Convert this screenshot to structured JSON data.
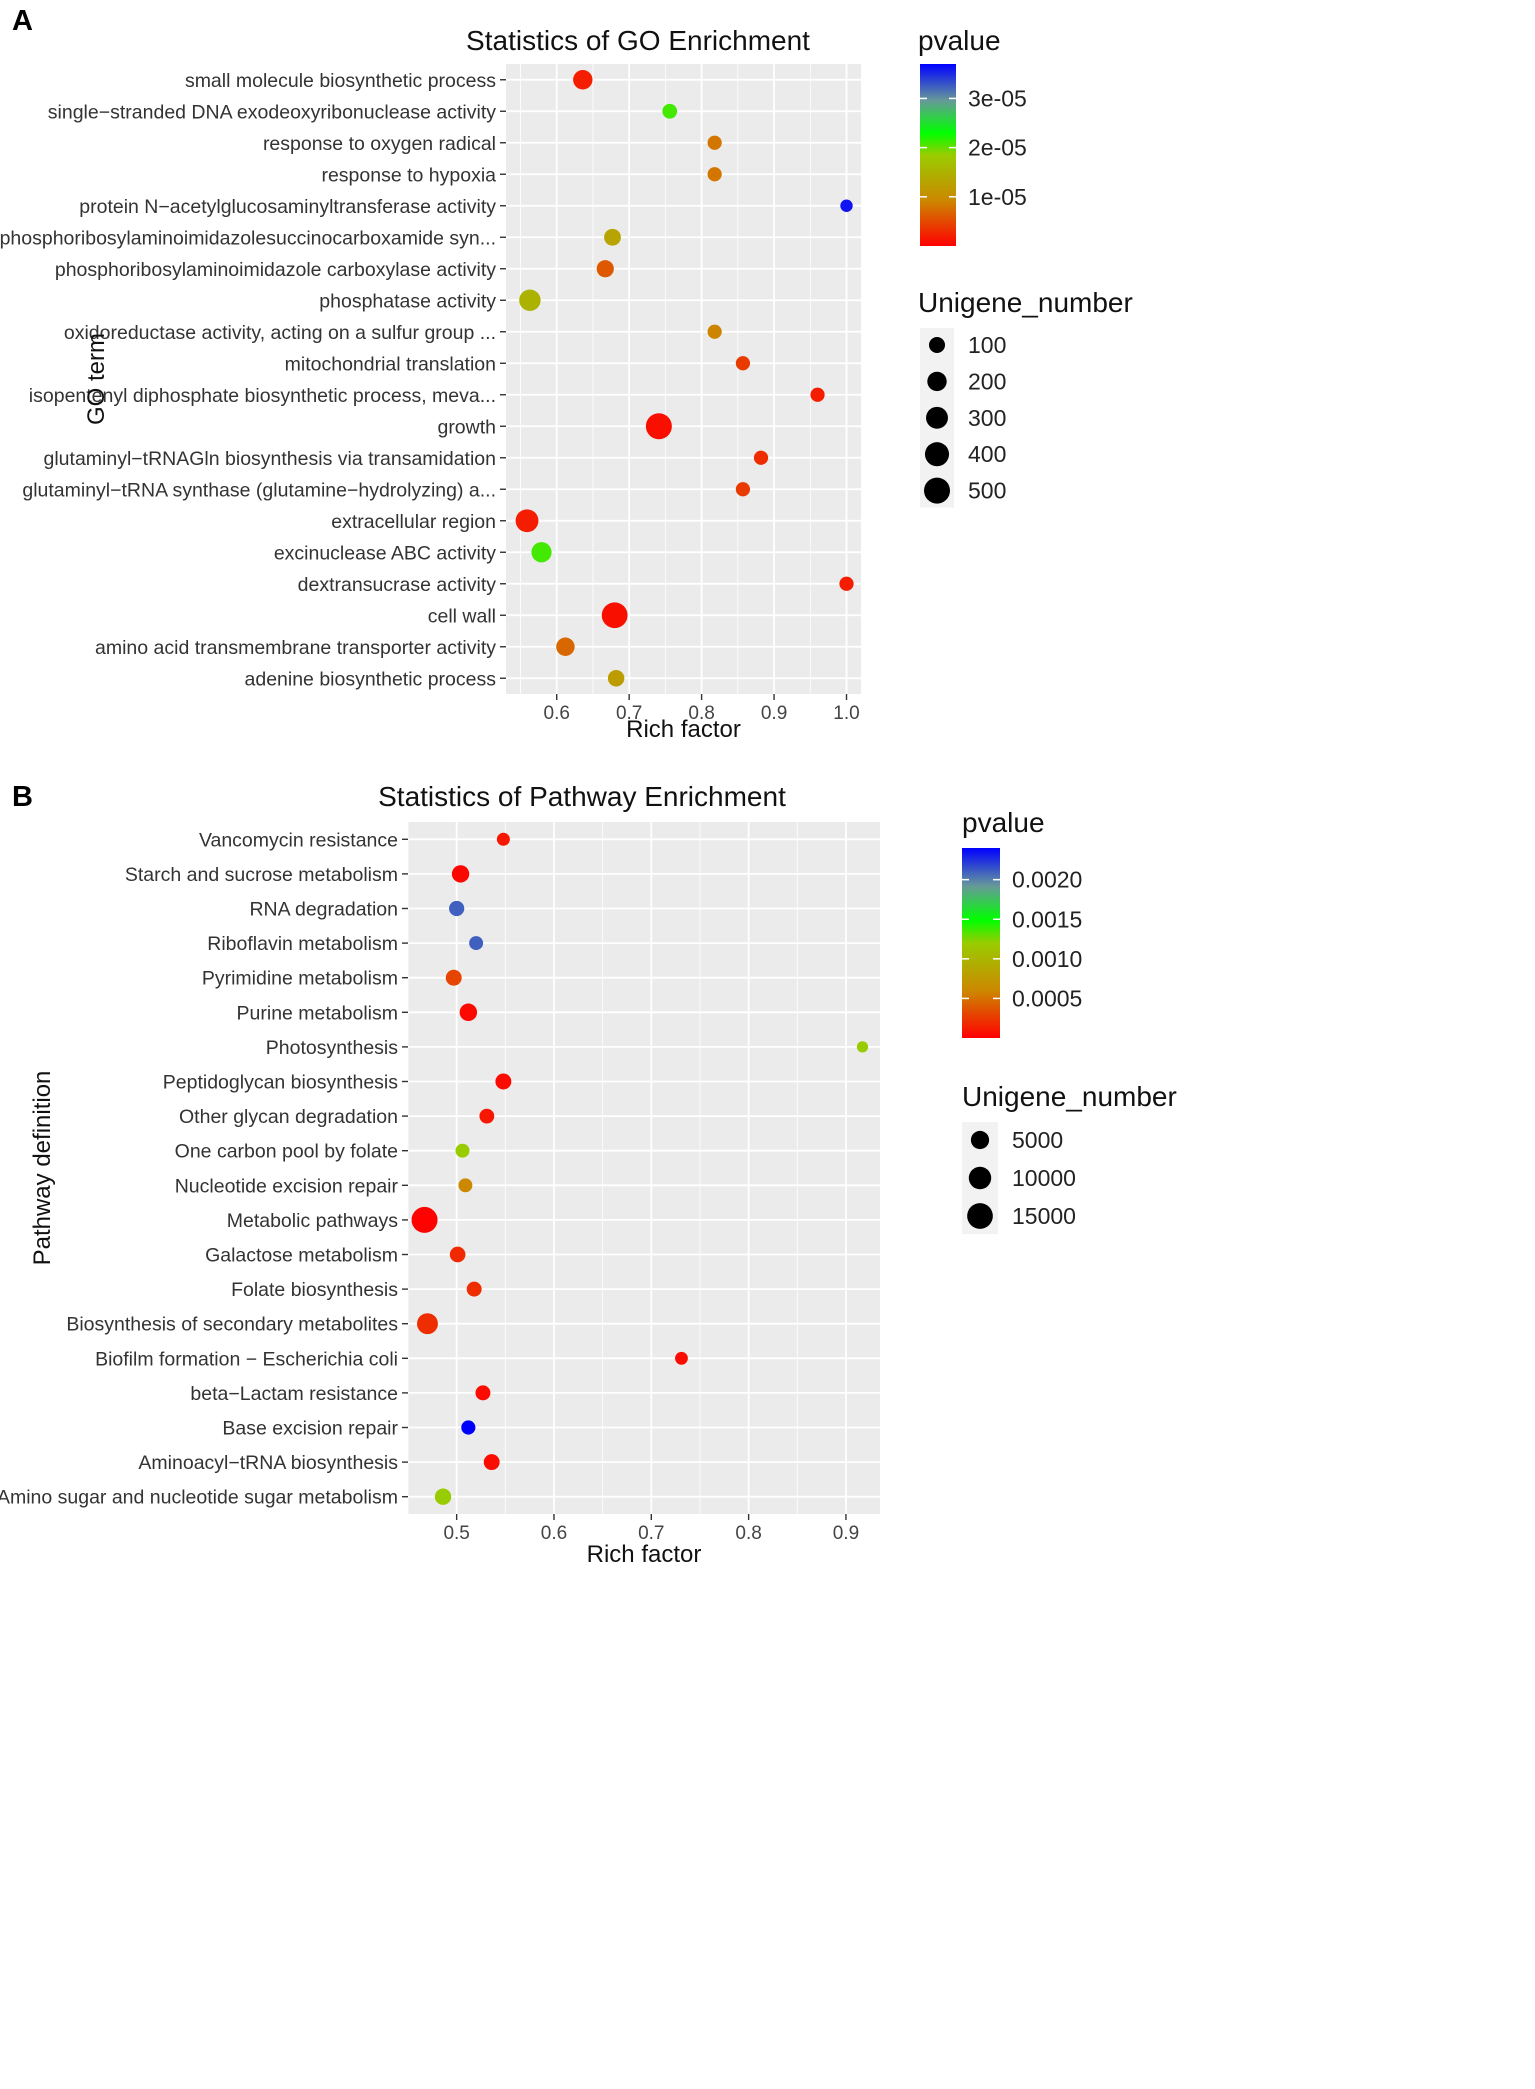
{
  "chart_data": [
    {
      "panel_label": "A",
      "type": "scatter",
      "title": "Statistics of GO Enrichment",
      "xlabel": "Rich factor",
      "ylabel": "GO term",
      "xlim": [
        0.53,
        1.02
      ],
      "xticks": [
        0.6,
        0.7,
        0.8,
        0.9,
        1.0
      ],
      "xtick_labels": [
        "0.6",
        "0.7",
        "0.8",
        "0.9",
        "1.0"
      ],
      "grid": true,
      "color_legend": {
        "title": "pvalue",
        "min": 0,
        "max": 3.7e-05,
        "ticks": [
          1e-05,
          2e-05,
          3e-05
        ],
        "tick_labels": [
          "1e-05",
          "2e-05",
          "3e-05"
        ]
      },
      "size_legend": {
        "title": "Unigene_number",
        "values": [
          100,
          200,
          300,
          400,
          500
        ],
        "labels": [
          "100",
          "200",
          "300",
          "400",
          "500"
        ]
      },
      "points": [
        {
          "term": "small molecule biosynthetic process",
          "rich_factor": 0.636,
          "pvalue": 2e-06,
          "unigene_number": 200
        },
        {
          "term": "single−stranded DNA exodeoxyribonuclease activity",
          "rich_factor": 0.756,
          "pvalue": 2.1e-05,
          "unigene_number": 70
        },
        {
          "term": "response to oxygen radical",
          "rich_factor": 0.818,
          "pvalue": 8e-06,
          "unigene_number": 60
        },
        {
          "term": "response to hypoxia",
          "rich_factor": 0.818,
          "pvalue": 8e-06,
          "unigene_number": 60
        },
        {
          "term": "protein N−acetylglucosaminyltransferase activity",
          "rich_factor": 1.0,
          "pvalue": 3.6e-05,
          "unigene_number": 30
        },
        {
          "term": "phosphoribosylaminoimidazolesuccinocarboxamide syn...",
          "rich_factor": 0.677,
          "pvalue": 1.3e-05,
          "unigene_number": 120
        },
        {
          "term": "phosphoribosylaminoimidazole carboxylase activity",
          "rich_factor": 0.667,
          "pvalue": 6e-06,
          "unigene_number": 130
        },
        {
          "term": "phosphatase activity",
          "rich_factor": 0.563,
          "pvalue": 1.5e-05,
          "unigene_number": 280
        },
        {
          "term": "oxidoreductase activity, acting on a sulfur group ...",
          "rich_factor": 0.818,
          "pvalue": 9e-06,
          "unigene_number": 60
        },
        {
          "term": "mitochondrial translation",
          "rich_factor": 0.857,
          "pvalue": 4e-06,
          "unigene_number": 60
        },
        {
          "term": "isopentenyl diphosphate biosynthetic process, meva...",
          "rich_factor": 0.96,
          "pvalue": 2e-06,
          "unigene_number": 60
        },
        {
          "term": "growth",
          "rich_factor": 0.741,
          "pvalue": 1e-06,
          "unigene_number": 500
        },
        {
          "term": "glutaminyl−tRNAGln biosynthesis via transamidation",
          "rich_factor": 0.882,
          "pvalue": 3e-06,
          "unigene_number": 60
        },
        {
          "term": "glutaminyl−tRNA synthase (glutamine−hydrolyzing) a...",
          "rich_factor": 0.857,
          "pvalue": 4e-06,
          "unigene_number": 60
        },
        {
          "term": "extracellular region",
          "rich_factor": 0.559,
          "pvalue": 2e-06,
          "unigene_number": 340
        },
        {
          "term": "excinuclease ABC activity",
          "rich_factor": 0.579,
          "pvalue": 2.1e-05,
          "unigene_number": 230
        },
        {
          "term": "dextransucrase activity",
          "rich_factor": 1.0,
          "pvalue": 2e-06,
          "unigene_number": 60
        },
        {
          "term": "cell wall",
          "rich_factor": 0.68,
          "pvalue": 1e-06,
          "unigene_number": 490
        },
        {
          "term": "amino acid transmembrane transporter activity",
          "rich_factor": 0.612,
          "pvalue": 7e-06,
          "unigene_number": 170
        },
        {
          "term": "adenine biosynthetic process",
          "rich_factor": 0.682,
          "pvalue": 1.2e-05,
          "unigene_number": 110
        }
      ]
    },
    {
      "panel_label": "B",
      "type": "scatter",
      "title": "Statistics of Pathway Enrichment",
      "xlabel": "Rich factor",
      "ylabel": "Pathway definition",
      "xlim": [
        0.45,
        0.935
      ],
      "xticks": [
        0.5,
        0.6,
        0.7,
        0.8,
        0.9
      ],
      "xtick_labels": [
        "0.5",
        "0.6",
        "0.7",
        "0.8",
        "0.9"
      ],
      "grid": true,
      "color_legend": {
        "title": "pvalue",
        "min": 0,
        "max": 0.0024,
        "ticks": [
          0.0005,
          0.001,
          0.0015,
          0.002
        ],
        "tick_labels": [
          "0.0005",
          "0.0010",
          "0.0015",
          "0.0020"
        ]
      },
      "size_legend": {
        "title": "Unigene_number",
        "values": [
          5000,
          10000,
          15000
        ],
        "labels": [
          "5000",
          "10000",
          "15000"
        ]
      },
      "points": [
        {
          "term": "Vancomycin resistance",
          "rich_factor": 0.548,
          "pvalue": 0.0001,
          "unigene_number": 1200
        },
        {
          "term": "Starch and sucrose metabolism",
          "rich_factor": 0.504,
          "pvalue": 3e-05,
          "unigene_number": 4200
        },
        {
          "term": "RNA degradation",
          "rich_factor": 0.5,
          "pvalue": 0.0021,
          "unigene_number": 2500
        },
        {
          "term": "Riboflavin metabolism",
          "rich_factor": 0.52,
          "pvalue": 0.0021,
          "unigene_number": 1700
        },
        {
          "term": "Pyrimidine metabolism",
          "rich_factor": 0.497,
          "pvalue": 0.0003,
          "unigene_number": 3000
        },
        {
          "term": "Purine metabolism",
          "rich_factor": 0.512,
          "pvalue": 4e-05,
          "unigene_number": 4300
        },
        {
          "term": "Photosynthesis",
          "rich_factor": 0.917,
          "pvalue": 0.0012,
          "unigene_number": 500
        },
        {
          "term": "Peptidoglycan biosynthesis",
          "rich_factor": 0.548,
          "pvalue": 5e-05,
          "unigene_number": 3000
        },
        {
          "term": "Other glycan degradation",
          "rich_factor": 0.531,
          "pvalue": 0.0001,
          "unigene_number": 2200
        },
        {
          "term": "One carbon pool by folate",
          "rich_factor": 0.506,
          "pvalue": 0.0012,
          "unigene_number": 1700
        },
        {
          "term": "Nucleotide excision repair",
          "rich_factor": 0.509,
          "pvalue": 0.0006,
          "unigene_number": 1700
        },
        {
          "term": "Metabolic pathways",
          "rich_factor": 0.467,
          "pvalue": 1e-05,
          "unigene_number": 15500
        },
        {
          "term": "Galactose metabolism",
          "rich_factor": 0.501,
          "pvalue": 0.00018,
          "unigene_number": 2800
        },
        {
          "term": "Folate biosynthesis",
          "rich_factor": 0.518,
          "pvalue": 0.0002,
          "unigene_number": 2300
        },
        {
          "term": "Biosynthesis of secondary metabolites",
          "rich_factor": 0.47,
          "pvalue": 0.0002,
          "unigene_number": 8000
        },
        {
          "term": "Biofilm formation − Escherichia coli",
          "rich_factor": 0.731,
          "pvalue": 5e-05,
          "unigene_number": 1100
        },
        {
          "term": "beta−Lactam resistance",
          "rich_factor": 0.527,
          "pvalue": 5e-05,
          "unigene_number": 2300
        },
        {
          "term": "Base excision repair",
          "rich_factor": 0.512,
          "pvalue": 0.0024,
          "unigene_number": 1800
        },
        {
          "term": "Aminoacyl−tRNA biosynthesis",
          "rich_factor": 0.536,
          "pvalue": 5e-05,
          "unigene_number": 3000
        },
        {
          "term": "Amino sugar and nucleotide sugar metabolism",
          "rich_factor": 0.486,
          "pvalue": 0.0012,
          "unigene_number": 3300
        }
      ]
    }
  ]
}
